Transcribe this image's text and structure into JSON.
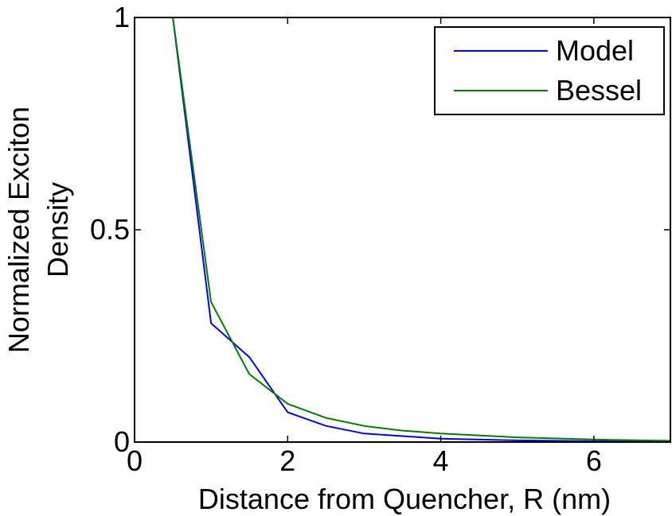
{
  "chart_data": {
    "type": "line",
    "title": "",
    "xlabel": "Distance from Quencher, R (nm)",
    "ylabel_lines": [
      "Normalized Exciton",
      "Density"
    ],
    "xlim": [
      0,
      7
    ],
    "ylim": [
      0,
      1
    ],
    "xticks": [
      0,
      2,
      4,
      6
    ],
    "xtick_labels": [
      "0",
      "2",
      "4",
      "6"
    ],
    "yticks": [
      0,
      0.5,
      1
    ],
    "ytick_labels": [
      "0",
      "0.5",
      "1"
    ],
    "grid": false,
    "legend_position": "top-right",
    "series": [
      {
        "name": "Model",
        "color": "#0000ff",
        "x": [
          0.5,
          1.0,
          1.5,
          2.0,
          2.5,
          3.0,
          4.0,
          5.0,
          6.0,
          7.0
        ],
        "y": [
          1.0,
          0.28,
          0.2,
          0.07,
          0.038,
          0.02,
          0.008,
          0.004,
          0.002,
          0.001
        ]
      },
      {
        "name": "Bessel",
        "color": "#008000",
        "x": [
          0.5,
          1.0,
          1.5,
          2.0,
          2.5,
          3.0,
          3.5,
          4.0,
          5.0,
          6.0,
          7.0
        ],
        "y": [
          1.0,
          0.33,
          0.16,
          0.09,
          0.057,
          0.038,
          0.027,
          0.02,
          0.011,
          0.006,
          0.003
        ]
      }
    ]
  }
}
